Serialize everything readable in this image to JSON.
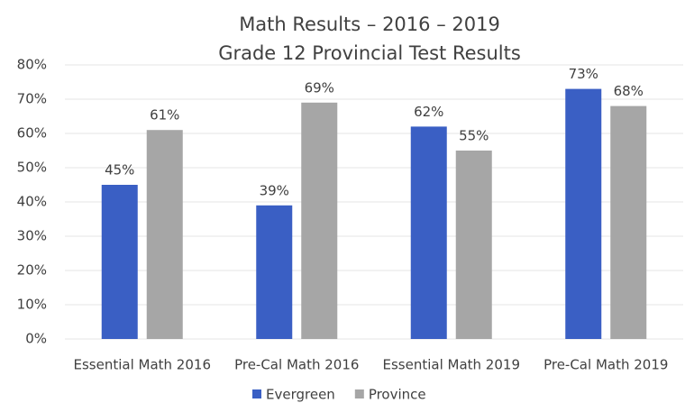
{
  "chart_data": {
    "type": "bar",
    "title": "Math Results – 2016 – 2019",
    "subtitle": "Grade 12 Provincial Test Results",
    "categories": [
      "Essential Math 2016",
      "Pre-Cal Math 2016",
      "Essential Math 2019",
      "Pre-Cal Math 2019"
    ],
    "series": [
      {
        "name": "Evergreen",
        "color": "#3a5fc4",
        "values": [
          45,
          39,
          62,
          73
        ],
        "value_labels": [
          "45%",
          "39%",
          "62%",
          "73%"
        ]
      },
      {
        "name": "Province",
        "color": "#a6a6a6",
        "values": [
          61,
          69,
          55,
          68
        ],
        "value_labels": [
          "61%",
          "69%",
          "55%",
          "68%"
        ]
      }
    ],
    "ylim": [
      0,
      80
    ],
    "yticks": [
      {
        "value": 0,
        "label": "0%"
      },
      {
        "value": 10,
        "label": "10%"
      },
      {
        "value": 20,
        "label": "20%"
      },
      {
        "value": 30,
        "label": "30%"
      },
      {
        "value": 40,
        "label": "40%"
      },
      {
        "value": 50,
        "label": "50%"
      },
      {
        "value": 60,
        "label": "60%"
      },
      {
        "value": 70,
        "label": "70%"
      },
      {
        "value": 80,
        "label": "80%"
      }
    ],
    "grid": true,
    "legend": "bottom"
  }
}
